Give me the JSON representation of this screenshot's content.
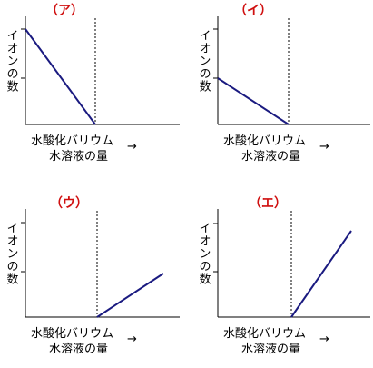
{
  "panels": [
    {
      "label": "（ア）",
      "y_label": "イオンの数",
      "x_label": [
        "水酸化バリウム",
        "水溶液の量"
      ],
      "arrow": "→"
    },
    {
      "label": "（イ）",
      "y_label": "イオンの数",
      "x_label": [
        "水酸化バリウム",
        "水溶液の量"
      ],
      "arrow": "→"
    },
    {
      "label": "（ウ）",
      "y_label": "イオンの数",
      "x_label": [
        "水酸化バリウム",
        "水溶液の量"
      ],
      "arrow": "→"
    },
    {
      "label": "（エ）",
      "y_label": "イオンの数",
      "x_label": [
        "水酸化バリウム",
        "水溶液の量"
      ],
      "arrow": "→"
    }
  ]
}
